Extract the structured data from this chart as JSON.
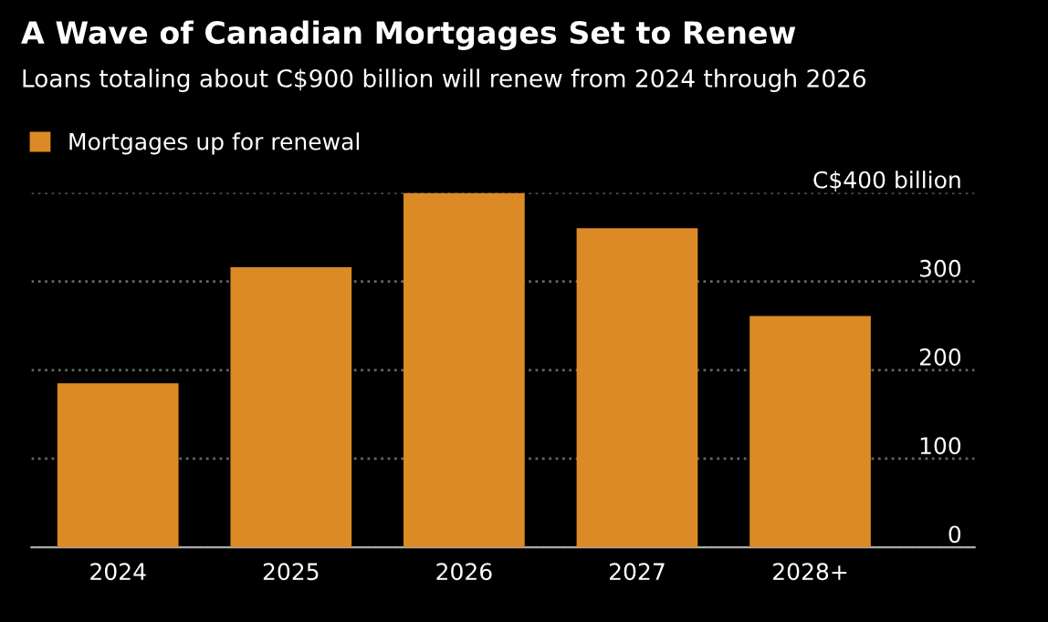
{
  "chart_data": {
    "type": "bar",
    "title": "A Wave of Canadian Mortgages Set to Renew",
    "subtitle": "Loans totaling about C$900 billion will renew from 2024 through 2026",
    "categories": [
      "2024",
      "2025",
      "2026",
      "2027",
      "2028+"
    ],
    "series": [
      {
        "name": "Mortgages up for renewal",
        "color": "#dc8a26",
        "values": [
          185,
          316,
          400,
          360,
          261
        ]
      }
    ],
    "ylim": [
      0,
      400
    ],
    "yticks": [
      0,
      100,
      200,
      300,
      {
        "value": 400,
        "label": "C$400 billion"
      }
    ],
    "grid": "y",
    "legend": "top left"
  }
}
